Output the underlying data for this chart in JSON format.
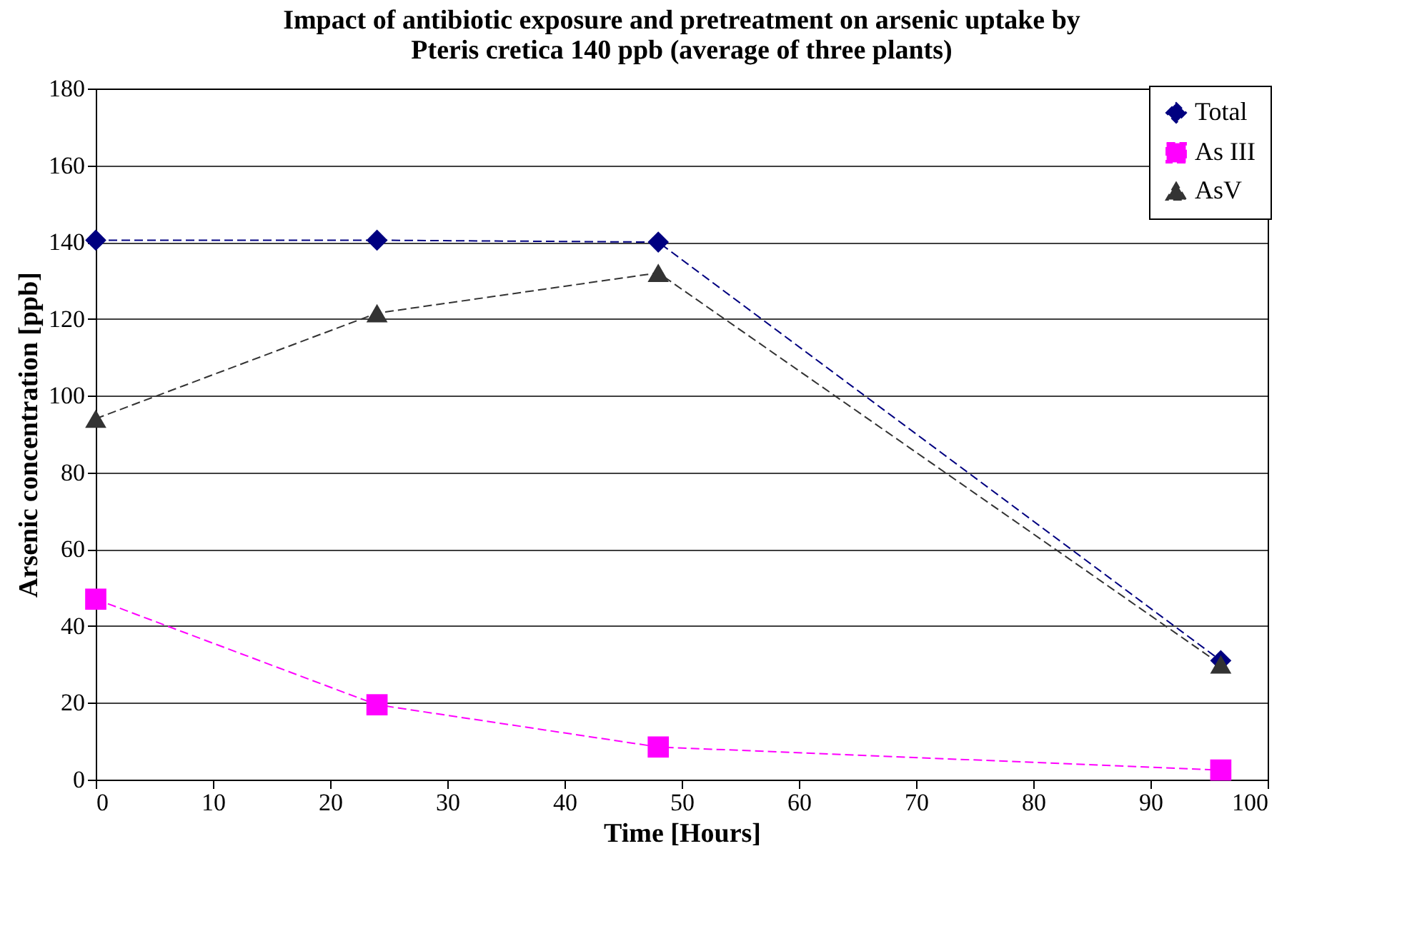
{
  "chart_data": {
    "type": "line",
    "title": [
      "Impact of antibiotic exposure and pretreatment on arsenic uptake by",
      "Pteris cretica  140 ppb (average of three plants)"
    ],
    "xlabel": "Time [Hours]",
    "ylabel": "Arsenic concentration [ppb]",
    "x": [
      0,
      24,
      48,
      96
    ],
    "series": [
      {
        "name": "Total",
        "color": "#000080",
        "values": [
          140.5,
          140.5,
          140,
          31
        ],
        "marker": "diamond",
        "line_style": "dashed"
      },
      {
        "name": "As III",
        "color": "#ff00ff",
        "values": [
          47,
          19.5,
          8.5,
          2.5
        ],
        "marker": "square",
        "line_style": "dashed"
      },
      {
        "name": "AsV",
        "color": "#333333",
        "values": [
          94,
          121.5,
          132,
          30
        ],
        "marker": "triangle",
        "line_style": "dashed"
      }
    ],
    "xlim": [
      0,
      100
    ],
    "xticks": [
      0,
      10,
      20,
      30,
      40,
      50,
      60,
      70,
      80,
      90,
      100
    ],
    "ylim": [
      0,
      180
    ],
    "yticks": [
      0,
      20,
      40,
      60,
      80,
      100,
      120,
      140,
      160,
      180
    ],
    "grid": "y",
    "legend": "top right"
  }
}
